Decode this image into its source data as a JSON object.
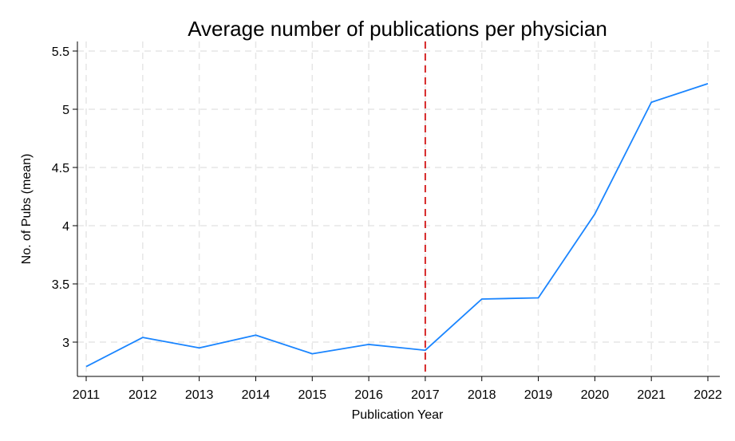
{
  "chart_data": {
    "type": "line",
    "title": "Average number of publications per physician",
    "xlabel": "Publication Year",
    "ylabel": "No. of Pubs (mean)",
    "x": [
      2011,
      2012,
      2013,
      2014,
      2015,
      2016,
      2017,
      2018,
      2019,
      2020,
      2021,
      2022
    ],
    "series": [
      {
        "values": [
          2.79,
          3.04,
          2.95,
          3.06,
          2.9,
          2.98,
          2.93,
          3.37,
          3.38,
          4.1,
          5.06,
          5.22
        ],
        "color": "#1a85ff"
      }
    ],
    "xticks": [
      "2011",
      "2012",
      "2013",
      "2014",
      "2015",
      "2016",
      "2017",
      "2018",
      "2019",
      "2020",
      "2021",
      "2022"
    ],
    "yticks": [
      3,
      3.5,
      4,
      4.5,
      5,
      5.5
    ],
    "ytick_labels": [
      "3",
      "3.5",
      "4",
      "4.5",
      "5",
      "5.5"
    ],
    "xlim": [
      2011,
      2022
    ],
    "ylim": [
      2.68,
      5.6
    ],
    "reference_line": {
      "x": 2017,
      "color": "#d62728",
      "style": "dashed"
    },
    "grid": true,
    "legend": false
  }
}
